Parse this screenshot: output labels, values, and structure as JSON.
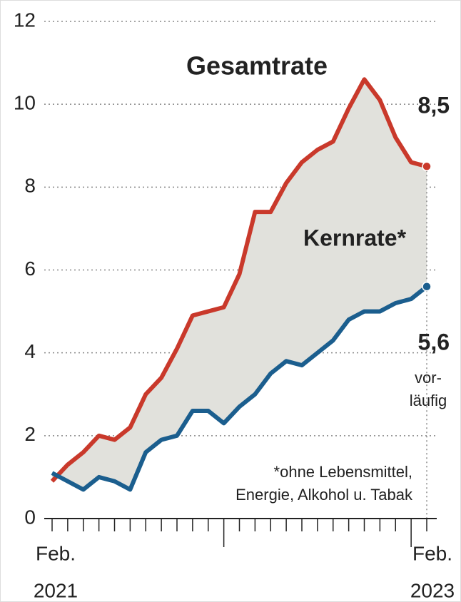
{
  "chart_data": {
    "type": "line",
    "categories": [
      [
        "Feb.",
        "2021"
      ],
      null,
      null,
      null,
      null,
      null,
      null,
      null,
      null,
      null,
      null,
      null,
      null,
      null,
      null,
      null,
      null,
      null,
      null,
      null,
      null,
      null,
      null,
      null,
      [
        "Feb.",
        "2023"
      ]
    ],
    "series": [
      {
        "name": "Gesamtrate",
        "color": "#c9392b",
        "values": [
          0.9,
          1.3,
          1.6,
          2.0,
          1.9,
          2.2,
          3.0,
          3.4,
          4.1,
          4.9,
          5.0,
          5.1,
          5.9,
          7.4,
          7.4,
          8.1,
          8.6,
          8.9,
          9.1,
          9.9,
          10.6,
          10.1,
          9.2,
          8.6,
          8.5
        ],
        "value_labels": [
          null,
          null,
          null,
          null,
          null,
          null,
          null,
          null,
          null,
          null,
          null,
          null,
          null,
          null,
          null,
          null,
          null,
          null,
          null,
          null,
          null,
          null,
          null,
          null,
          "8,5"
        ]
      },
      {
        "name": "Kernrate*",
        "color": "#1b5e8e",
        "values": [
          1.1,
          0.9,
          0.7,
          1.0,
          0.9,
          0.7,
          1.6,
          1.9,
          2.0,
          2.6,
          2.6,
          2.3,
          2.7,
          3.0,
          3.5,
          3.8,
          3.7,
          4.0,
          4.3,
          4.8,
          5.0,
          5.0,
          5.2,
          5.3,
          5.6
        ],
        "value_labels": [
          null,
          null,
          null,
          null,
          null,
          null,
          null,
          null,
          null,
          null,
          null,
          null,
          null,
          null,
          null,
          null,
          null,
          null,
          null,
          null,
          null,
          null,
          null,
          null,
          "5,6"
        ]
      }
    ],
    "ylim": [
      0,
      12
    ],
    "yticks": [
      0,
      2,
      4,
      6,
      8,
      10,
      12
    ],
    "grid": true,
    "annotations": [
      "vor-",
      "läufig",
      "*ohne Lebensmittel,",
      "Energie, Alkohol u. Tabak"
    ]
  }
}
